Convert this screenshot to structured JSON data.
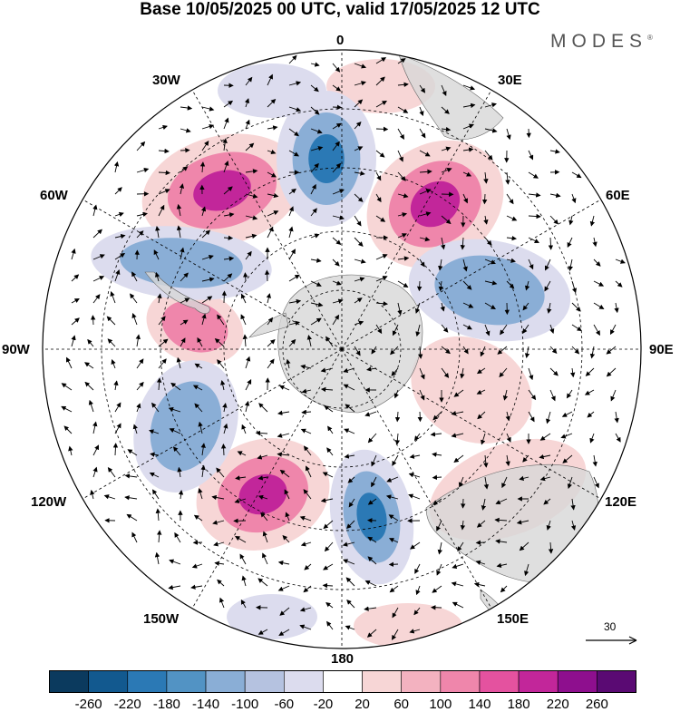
{
  "title": "Base 10/05/2025 00 UTC, valid 17/05/2025 12 UTC",
  "brand": "MODES",
  "brand_mark": "®",
  "longitude_labels": {
    "lon_0": "0",
    "lon_30e": "30E",
    "lon_60e": "60E",
    "lon_90e": "90E",
    "lon_120e": "120E",
    "lon_150e": "150E",
    "lon_180": "180",
    "lon_150w": "150W",
    "lon_120w": "120W",
    "lon_90w": "90W",
    "lon_60w": "60W",
    "lon_30w": "30W"
  },
  "reference_vector": {
    "label": "30"
  },
  "colorbar": {
    "tick_labels": [
      "-260",
      "-220",
      "-180",
      "-140",
      "-100",
      "-60",
      "-20",
      "20",
      "60",
      "100",
      "140",
      "180",
      "220",
      "260"
    ],
    "colors": [
      "#0b3a5e",
      "#12598f",
      "#2b79b5",
      "#5293c4",
      "#8aaed6",
      "#b5c2e0",
      "#dcdcee",
      "#ffffff",
      "#f7d6d6",
      "#f3b2c0",
      "#ef86ab",
      "#e4529f",
      "#c2269a",
      "#8e0f8e",
      "#5a0a73"
    ]
  },
  "map_colors": {
    "land": "#d7d7d7",
    "neg_strong": "#2b79b5",
    "neg_mid": "#8aaed6",
    "neg_weak": "#dcdcee",
    "pos_weak": "#f7d6d6",
    "pos_mid": "#ef86ab",
    "pos_strong": "#c2269a"
  }
}
